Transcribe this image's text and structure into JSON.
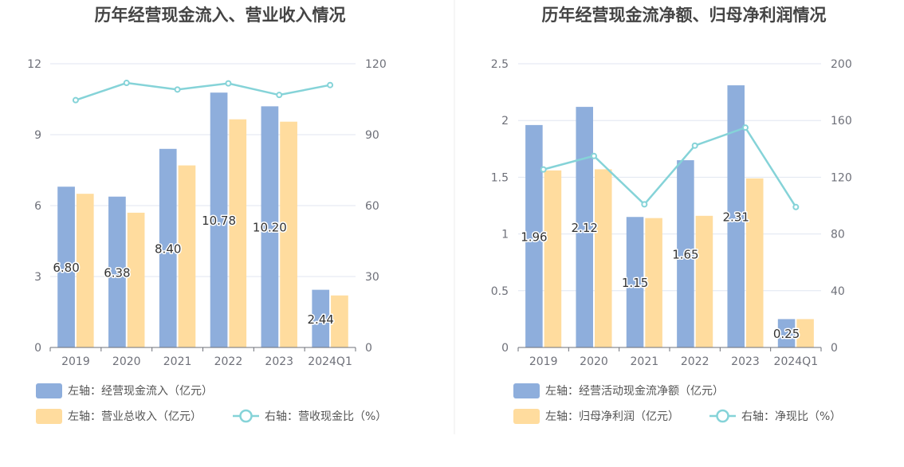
{
  "chart_data": [
    {
      "type": "bar",
      "title": "历年经营现金流入、营业收入情况",
      "categories": [
        "2019",
        "2020",
        "2021",
        "2022",
        "2023",
        "2024Q1"
      ],
      "left_axis": {
        "ticks": [
          "0",
          "3",
          "6",
          "9",
          "12"
        ],
        "range": [
          0,
          12
        ]
      },
      "right_axis": {
        "ticks": [
          "0",
          "30",
          "60",
          "90",
          "120"
        ],
        "range": [
          0,
          120
        ]
      },
      "series": [
        {
          "name": "左轴：经营现金流入（亿元）",
          "type": "bar",
          "axis": "left",
          "color": "#8eaedc",
          "values": [
            6.8,
            6.38,
            8.4,
            10.78,
            10.2,
            2.44
          ],
          "labels": [
            "6.80",
            "6.38",
            "8.40",
            "10.78",
            "10.20",
            "2.44"
          ]
        },
        {
          "name": "左轴：营业总收入（亿元）",
          "type": "bar",
          "axis": "left",
          "color": "#ffdc9e",
          "values": [
            6.5,
            5.7,
            7.7,
            9.65,
            9.55,
            2.2
          ]
        },
        {
          "name": "右轴：营收现金比（%）",
          "type": "line",
          "axis": "right",
          "color": "#85d3d8",
          "values": [
            104.6,
            111.9,
            109.1,
            111.7,
            106.8,
            111.0
          ]
        }
      ]
    },
    {
      "type": "bar",
      "title": "历年经营现金流净额、归母净利润情况",
      "categories": [
        "2019",
        "2020",
        "2021",
        "2022",
        "2023",
        "2024Q1"
      ],
      "left_axis": {
        "ticks": [
          "0",
          "0.5",
          "1",
          "1.5",
          "2",
          "2.5"
        ],
        "range": [
          0,
          2.5
        ]
      },
      "right_axis": {
        "ticks": [
          "0",
          "40",
          "80",
          "120",
          "160",
          "200"
        ],
        "range": [
          0,
          200
        ]
      },
      "series": [
        {
          "name": "左轴：经营活动现金流净额（亿元）",
          "type": "bar",
          "axis": "left",
          "color": "#8eaedc",
          "values": [
            1.96,
            2.12,
            1.15,
            1.65,
            2.31,
            0.25
          ],
          "labels": [
            "1.96",
            "2.12",
            "1.15",
            "1.65",
            "2.31",
            "0.25"
          ]
        },
        {
          "name": "左轴：归母净利润（亿元）",
          "type": "bar",
          "axis": "left",
          "color": "#ffdc9e",
          "values": [
            1.56,
            1.57,
            1.14,
            1.16,
            1.49,
            0.25
          ]
        },
        {
          "name": "右轴：净现比（%）",
          "type": "line",
          "axis": "right",
          "color": "#85d3d8",
          "values": [
            125.5,
            135.0,
            100.9,
            142.3,
            155.0,
            99.0
          ]
        }
      ]
    }
  ]
}
